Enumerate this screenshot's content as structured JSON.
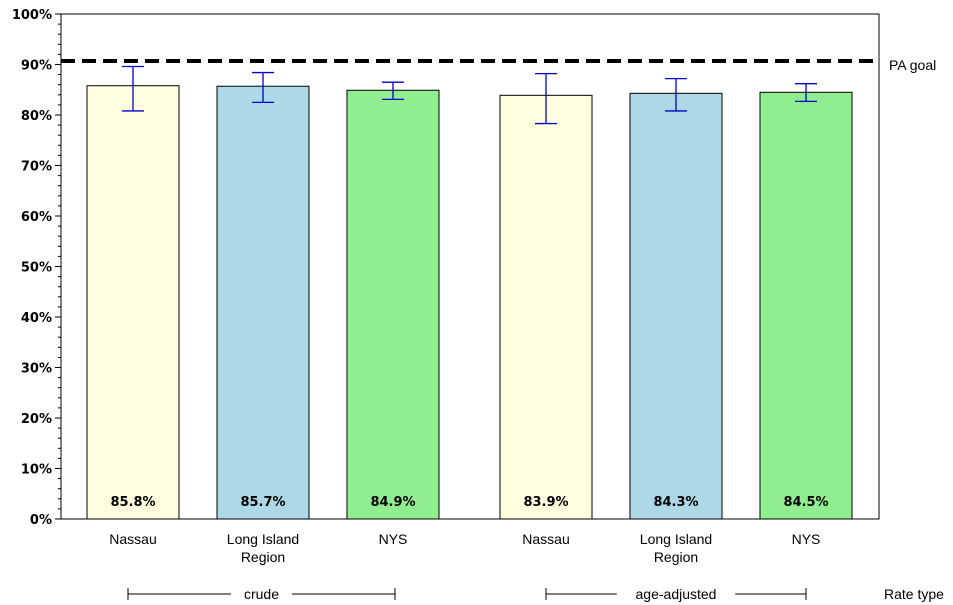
{
  "chart_data": {
    "type": "bar",
    "ylim": [
      0,
      100
    ],
    "yticks": [
      "0%",
      "10%",
      "20%",
      "30%",
      "40%",
      "50%",
      "60%",
      "70%",
      "80%",
      "90%",
      "100%"
    ],
    "grid": false,
    "bars": [
      {
        "label": [
          "Nassau"
        ],
        "group": "crude",
        "value": 85.8,
        "value_label": "85.8%",
        "ci": [
          80.8,
          89.6
        ],
        "color": "#ffffe0"
      },
      {
        "label": [
          "Long Island",
          "Region"
        ],
        "group": "crude",
        "value": 85.7,
        "value_label": "85.7%",
        "ci": [
          82.5,
          88.4
        ],
        "color": "#add8e6"
      },
      {
        "label": [
          "NYS"
        ],
        "group": "crude",
        "value": 84.9,
        "value_label": "84.9%",
        "ci": [
          83.1,
          86.5
        ],
        "color": "#90ee90"
      },
      {
        "label": [
          "Nassau"
        ],
        "group": "age-adjusted",
        "value": 83.9,
        "value_label": "83.9%",
        "ci": [
          78.3,
          88.2
        ],
        "color": "#ffffe0"
      },
      {
        "label": [
          "Long Island",
          "Region"
        ],
        "group": "age-adjusted",
        "value": 84.3,
        "value_label": "84.3%",
        "ci": [
          80.8,
          87.2
        ],
        "color": "#add8e6"
      },
      {
        "label": [
          "NYS"
        ],
        "group": "age-adjusted",
        "value": 84.5,
        "value_label": "84.5%",
        "ci": [
          82.7,
          86.2
        ],
        "color": "#90ee90"
      }
    ],
    "groups": [
      "crude",
      "age-adjusted"
    ],
    "group_axis_label": "Rate type",
    "reference_line": {
      "value": 90.7,
      "label": "PA goal",
      "style": "dashed"
    },
    "error_bar_color": "#0000cc"
  }
}
